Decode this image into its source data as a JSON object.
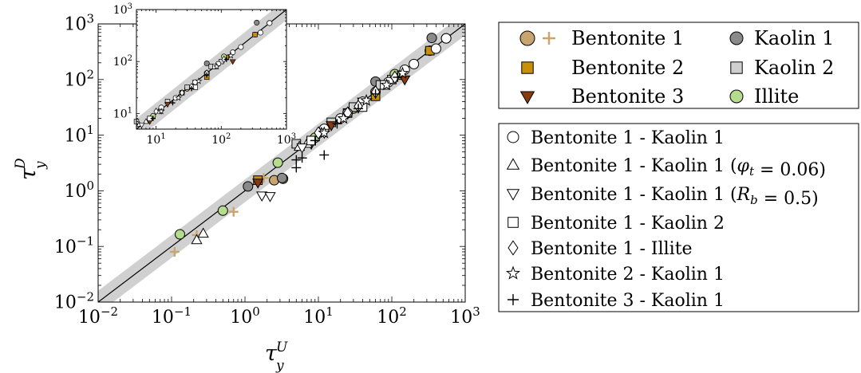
{
  "chart_data": {
    "type": "scatter",
    "xlabel": "τ_y^U",
    "ylabel": "τ_y^D",
    "xscale": "log",
    "yscale": "log",
    "xlim": [
      0.01,
      1000
    ],
    "ylim": [
      0.01,
      1000
    ],
    "ticks": [
      {
        "value": 0.01,
        "base": "10",
        "exp": "−2"
      },
      {
        "value": 0.1,
        "base": "10",
        "exp": "−1"
      },
      {
        "value": 1,
        "base": "10",
        "exp": "0"
      },
      {
        "value": 10,
        "base": "10",
        "exp": "1"
      },
      {
        "value": 100,
        "base": "10",
        "exp": "2"
      },
      {
        "value": 1000,
        "base": "10",
        "exp": "3"
      }
    ],
    "inset": {
      "xlim": [
        5,
        1000
      ],
      "ylim": [
        5,
        1000
      ],
      "ticks": [
        {
          "value": 10,
          "base": "10",
          "exp": "1"
        },
        {
          "value": 100,
          "base": "10",
          "exp": "2"
        },
        {
          "value": 1000,
          "base": "10",
          "exp": "3"
        }
      ]
    },
    "reference_line": "y = x",
    "band_factor": 1.6,
    "legend_materials": [
      {
        "label": "Bentonite 1",
        "marker": "circle+plus",
        "color": "#c8a46e",
        "plus_color": "#c8a46e"
      },
      {
        "label": "Kaolin 1",
        "marker": "circle",
        "color": "#8a8a8a"
      },
      {
        "label": "Bentonite 2",
        "marker": "square",
        "color": "#c8900a"
      },
      {
        "label": "Kaolin 2",
        "marker": "square",
        "color": "#cfcfcf"
      },
      {
        "label": "Bentonite 3",
        "marker": "triangle-down",
        "color": "#8b3a0f"
      },
      {
        "label": "Illite",
        "marker": "circle",
        "color": "#b5dc8c"
      }
    ],
    "legend_mixtures": [
      {
        "label": "Bentonite 1 - Kaolin 1",
        "marker": "circle"
      },
      {
        "label": "Bentonite 1 - Kaolin 1 (φ_t = 0.06)",
        "marker": "triangle-up"
      },
      {
        "label": "Bentonite 1 - Kaolin 1 (R_b = 0.5)",
        "marker": "triangle-down"
      },
      {
        "label": "Bentonite 1 - Kaolin 2",
        "marker": "square"
      },
      {
        "label": "Bentonite 1 - Illite",
        "marker": "diamond"
      },
      {
        "label": "Bentonite 2 - Kaolin 1",
        "marker": "star"
      },
      {
        "label": "Bentonite 3 - Kaolin 1",
        "marker": "plus"
      }
    ],
    "series": [
      {
        "legend_index": 0,
        "marker": "plus",
        "color": "#c8a46e",
        "x": [
          0.11,
          0.22,
          0.7,
          1.8
        ],
        "y": [
          0.08,
          0.16,
          0.42,
          1.7
        ]
      },
      {
        "legend_index": 0,
        "marker": "circle",
        "color": "#c8a46e",
        "x": [
          2.5,
          3.3,
          30,
          60,
          330,
          550
        ],
        "y": [
          1.55,
          1.65,
          30,
          60,
          330,
          550
        ]
      },
      {
        "legend_index": 1,
        "marker": "circle",
        "color": "#8a8a8a",
        "x": [
          1.1,
          3.2,
          60,
          350
        ],
        "y": [
          1.2,
          1.7,
          92,
          560
        ]
      },
      {
        "legend_index": 2,
        "marker": "square",
        "color": "#c8900a",
        "x": [
          1.5,
          8,
          25,
          60,
          120,
          330
        ],
        "y": [
          1.55,
          8,
          25,
          50,
          120,
          330
        ]
      },
      {
        "legend_index": 3,
        "marker": "square",
        "color": "#cfcfcf",
        "x": [
          5,
          15,
          30,
          70,
          100
        ],
        "y": [
          7,
          17,
          32,
          80,
          100
        ]
      },
      {
        "legend_index": 4,
        "marker": "triangle-down",
        "color": "#8b3a0f",
        "x": [
          1.5,
          8,
          15,
          40,
          150
        ],
        "y": [
          1.4,
          7,
          15,
          40,
          100
        ]
      },
      {
        "legend_index": 5,
        "marker": "circle",
        "color": "#b5dc8c",
        "x": [
          0.13,
          0.5,
          2.8,
          9,
          25,
          110
        ],
        "y": [
          0.165,
          0.44,
          3.2,
          9,
          25,
          125
        ]
      },
      {
        "legend_index": 6,
        "marker": "circle",
        "color": "none",
        "x": [
          12,
          20,
          40,
          90,
          150,
          200,
          400,
          550
        ],
        "y": [
          13,
          20,
          40,
          90,
          150,
          190,
          360,
          550
        ]
      },
      {
        "legend_index": 7,
        "marker": "triangle-up",
        "color": "none",
        "x": [
          0.22,
          0.27,
          5.5,
          7,
          11
        ],
        "y": [
          0.13,
          0.17,
          6.2,
          7,
          11
        ]
      },
      {
        "legend_index": 8,
        "marker": "triangle-down",
        "color": "none",
        "x": [
          1.7,
          2.2,
          6,
          12
        ],
        "y": [
          0.82,
          0.8,
          6,
          11
        ]
      },
      {
        "legend_index": 9,
        "marker": "square",
        "color": "none",
        "x": [
          8,
          40,
          80
        ],
        "y": [
          8,
          32,
          80
        ]
      },
      {
        "legend_index": 10,
        "marker": "diamond",
        "color": "none",
        "x": [
          10,
          25,
          35,
          60,
          110
        ],
        "y": [
          11,
          25,
          33,
          60,
          110
        ]
      },
      {
        "legend_index": 11,
        "marker": "star",
        "color": "none",
        "x": [
          12,
          22,
          45,
          85,
          140
        ],
        "y": [
          11,
          20,
          42,
          80,
          130
        ]
      },
      {
        "legend_index": 12,
        "marker": "plus",
        "color": "none",
        "x": [
          5,
          5,
          6,
          9,
          12,
          18,
          35,
          60,
          120
        ],
        "y": [
          2.6,
          3.6,
          3.9,
          8,
          4.4,
          16,
          30,
          55,
          110
        ]
      }
    ]
  }
}
